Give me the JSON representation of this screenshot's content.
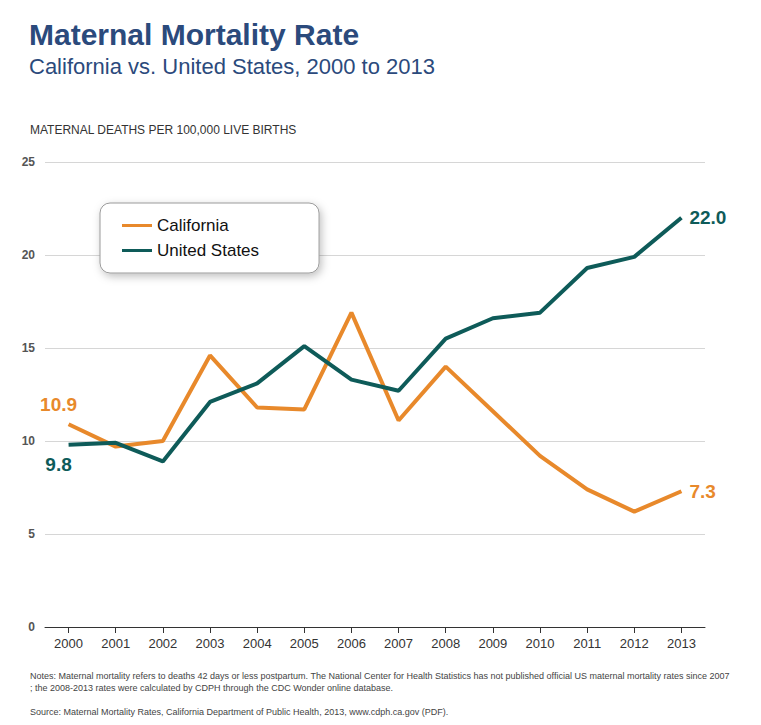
{
  "chart_data": {
    "type": "line",
    "title": "Maternal Mortality Rate",
    "subtitle": "California vs. United States, 2000 to 2013",
    "y_label": "MATERNAL DEATHS PER 100,000 LIVE BIRTHS",
    "categories": [
      "2000",
      "2001",
      "2002",
      "2003",
      "2004",
      "2005",
      "2006",
      "2007",
      "2008",
      "2009",
      "2010",
      "2011",
      "2012",
      "2013"
    ],
    "series": [
      {
        "name": "California",
        "color": "#e8892b",
        "values": [
          10.9,
          9.7,
          10.0,
          14.6,
          11.8,
          11.7,
          16.9,
          11.1,
          14.0,
          11.6,
          9.2,
          7.4,
          6.2,
          7.3
        ],
        "value_labels": [
          "10.9",
          null,
          null,
          null,
          null,
          null,
          null,
          null,
          null,
          null,
          null,
          null,
          null,
          "7.3"
        ]
      },
      {
        "name": "United States",
        "color": "#0e5b59",
        "values": [
          9.8,
          9.9,
          8.9,
          12.1,
          13.1,
          15.1,
          13.3,
          12.7,
          15.5,
          16.6,
          16.9,
          19.3,
          19.9,
          22.0
        ],
        "value_labels": [
          "9.8",
          null,
          null,
          null,
          null,
          null,
          null,
          null,
          null,
          null,
          null,
          null,
          null,
          "22.0"
        ]
      }
    ],
    "ylim": [
      0,
      25
    ],
    "yticks": [
      0,
      5,
      10,
      15,
      20,
      25
    ],
    "grid": true,
    "legend": "upper left",
    "notes": "Notes: Maternal mortality refers to deaths 42 days or less postpartum. The National Center for Health Statistics has not published official US maternal mortality rates since 2007; the 2008-2013 rates were calculated by CDPH through the CDC Wonder online database.",
    "source": "Source: Maternal Mortality Rates, California Department of Public Health, 2013, www.cdph.ca.gov (PDF)."
  }
}
